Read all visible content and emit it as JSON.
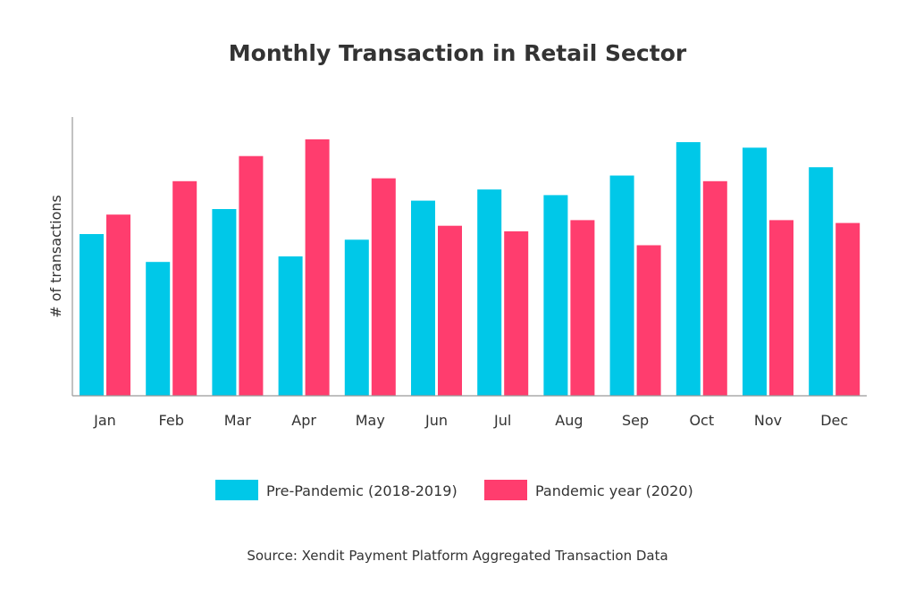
{
  "chart_data": {
    "type": "bar",
    "title": "Monthly Transaction in Retail Sector",
    "xlabel": "",
    "ylabel": "# of transactions",
    "categories": [
      "Jan",
      "Feb",
      "Mar",
      "Apr",
      "May",
      "Jun",
      "Jul",
      "Aug",
      "Sep",
      "Oct",
      "Nov",
      "Dec"
    ],
    "series": [
      {
        "name": "Pre-Pandemic (2018-2019)",
        "color": "#00C8E8",
        "values": [
          58,
          48,
          67,
          50,
          56,
          70,
          74,
          72,
          79,
          91,
          89,
          82
        ]
      },
      {
        "name": "Pandemic year (2020)",
        "color": "#FF3D6E",
        "values": [
          65,
          77,
          86,
          92,
          78,
          61,
          59,
          63,
          54,
          77,
          63,
          62
        ]
      }
    ],
    "ylim": [
      0,
      100
    ],
    "grid": false,
    "y_tick_labels_shown": false,
    "legend_position": "bottom-center",
    "source": "Source: Xendit Payment Platform Aggregated Transaction Data",
    "axis_color": "#999999"
  }
}
